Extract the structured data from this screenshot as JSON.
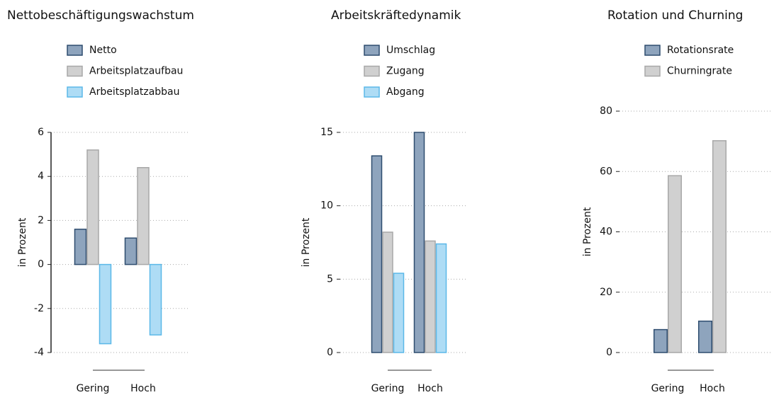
{
  "chart_data": [
    {
      "type": "bar",
      "title": "Nettobeschäftigungswachstum",
      "ylabel": "in Prozent",
      "categories": [
        "Gering",
        "Hoch"
      ],
      "series": [
        {
          "name": "Netto",
          "color": "#8ea4bd",
          "edgecolor": "#2e4d6f",
          "values": [
            1.6,
            1.2
          ]
        },
        {
          "name": "Arbeitsplatzaufbau",
          "color": "#d0d0d0",
          "edgecolor": "#a8a8a8",
          "values": [
            5.2,
            4.4
          ]
        },
        {
          "name": "Arbeitsplatzabbau",
          "color": "#aedcf5",
          "edgecolor": "#5bb8e8",
          "values": [
            -3.6,
            -3.2
          ]
        }
      ],
      "ylim": [
        -4,
        6
      ],
      "yticks": [
        -4,
        -2,
        0,
        2,
        4,
        6
      ],
      "grid": true
    },
    {
      "type": "bar",
      "title": "Arbeitskräftedynamik",
      "ylabel": "in Prozent",
      "categories": [
        "Gering",
        "Hoch"
      ],
      "series": [
        {
          "name": "Umschlag",
          "color": "#8ea4bd",
          "edgecolor": "#2e4d6f",
          "values": [
            13.4,
            15.0
          ]
        },
        {
          "name": "Zugang",
          "color": "#d0d0d0",
          "edgecolor": "#a8a8a8",
          "values": [
            8.2,
            7.6
          ]
        },
        {
          "name": "Abgang",
          "color": "#aedcf5",
          "edgecolor": "#5bb8e8",
          "values": [
            5.4,
            7.4
          ]
        }
      ],
      "ylim": [
        0,
        15
      ],
      "yticks": [
        0,
        5,
        10,
        15
      ],
      "grid": true
    },
    {
      "type": "bar",
      "title": "Rotation und Churning",
      "ylabel": "in Prozent",
      "categories": [
        "Gering",
        "Hoch"
      ],
      "series": [
        {
          "name": "Rotationsrate",
          "color": "#8ea4bd",
          "edgecolor": "#2e4d6f",
          "values": [
            7.6,
            10.4
          ]
        },
        {
          "name": "Churningrate",
          "color": "#d0d0d0",
          "edgecolor": "#a8a8a8",
          "values": [
            58.6,
            70.2
          ]
        }
      ],
      "ylim": [
        0,
        80
      ],
      "yticks": [
        0,
        20,
        40,
        60,
        80
      ],
      "grid": true
    }
  ]
}
